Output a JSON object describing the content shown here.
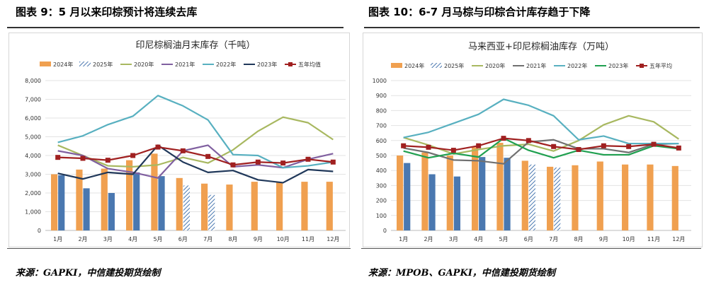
{
  "left": {
    "figure_title": "图表 9：5 月以来印棕预计将连续去库",
    "source": "来源：GAPKI，中信建投期货绘制",
    "chart_data": {
      "type": "bar+line",
      "title": "印尼棕榈油月末库存（千吨）",
      "categories": [
        "1月",
        "2月",
        "3月",
        "4月",
        "5月",
        "6月",
        "7月",
        "8月",
        "9月",
        "10月",
        "11月",
        "12月"
      ],
      "ylim": [
        0,
        8000
      ],
      "yticks": [
        0,
        1000,
        2000,
        3000,
        4000,
        5000,
        6000,
        7000,
        8000
      ],
      "ytick_labels": [
        "0",
        "1,000",
        "2,000",
        "3,000",
        "4,000",
        "5,000",
        "6,000",
        "7,000",
        "8,000"
      ],
      "grid": true,
      "legend_position": "top",
      "bar_series": [
        {
          "name": "2024年",
          "color": "#F0A050",
          "pattern": "solid",
          "values": [
            3000,
            3250,
            3300,
            3750,
            4100,
            2800,
            2500,
            2450,
            2600,
            2550,
            2600,
            2600
          ]
        },
        {
          "name": "2025年",
          "color": "#4A78B0",
          "pattern": "solid",
          "values": [
            2950,
            2250,
            2000,
            3100,
            2900,
            null,
            null,
            null,
            null,
            null,
            null,
            null
          ]
        },
        {
          "name": "2025年",
          "color": "#4A78B0",
          "pattern": "hatch",
          "values": [
            null,
            null,
            null,
            null,
            null,
            2400,
            1900,
            null,
            null,
            null,
            null,
            null
          ]
        }
      ],
      "line_series": [
        {
          "name": "2020年",
          "color": "#A8B860",
          "values": [
            4550,
            4000,
            3450,
            3400,
            3500,
            3900,
            3600,
            4300,
            5300,
            6050,
            5750,
            4850
          ]
        },
        {
          "name": "2021年",
          "color": "#8060A0",
          "values": [
            4250,
            4000,
            3300,
            3100,
            2800,
            4250,
            4550,
            3400,
            3500,
            3350,
            3800,
            4100
          ]
        },
        {
          "name": "2022年",
          "color": "#58B0C0",
          "values": [
            4700,
            5050,
            5650,
            6100,
            7200,
            6650,
            5900,
            4050,
            4000,
            3350,
            3450,
            3650
          ]
        },
        {
          "name": "2023年",
          "color": "#20385A",
          "values": [
            3050,
            2750,
            3100,
            3000,
            4550,
            3650,
            3100,
            3200,
            2700,
            2550,
            3250,
            3150
          ]
        },
        {
          "name": "五年均值",
          "color": "#A02020",
          "marker": "square",
          "values": [
            3900,
            3850,
            3750,
            4000,
            4450,
            4250,
            3950,
            3500,
            3650,
            3600,
            3800,
            3650
          ]
        }
      ],
      "legend": [
        "2024年",
        "2025年",
        "2020年",
        "2021年",
        "2022年",
        "2023年",
        "五年均值"
      ]
    }
  },
  "right": {
    "figure_title": "图表 10：6-7 月马棕与印棕合计库存趋于下降",
    "source": "来源：MPOB、GAPKI，中信建投期货绘制",
    "chart_data": {
      "type": "bar+line",
      "title": "马来西亚+印尼棕榈油库存（万吨）",
      "categories": [
        "1月",
        "2月",
        "3月",
        "4月",
        "5月",
        "6月",
        "7月",
        "8月",
        "9月",
        "10月",
        "11月",
        "12月"
      ],
      "ylim": [
        0,
        1000
      ],
      "yticks": [
        0,
        100,
        200,
        300,
        400,
        500,
        600,
        700,
        800,
        900,
        1000
      ],
      "ytick_labels": [
        "0",
        "100",
        "200",
        "300",
        "400",
        "500",
        "600",
        "700",
        "800",
        "900",
        "1000"
      ],
      "grid": true,
      "legend_position": "top",
      "bar_series": [
        {
          "name": "2024年",
          "color": "#F0A050",
          "pattern": "solid",
          "values": [
            500,
            520,
            500,
            555,
            585,
            465,
            425,
            435,
            460,
            440,
            440,
            430
          ]
        },
        {
          "name": "2025年",
          "color": "#4A78B0",
          "pattern": "solid",
          "values": [
            450,
            375,
            360,
            490,
            485,
            null,
            null,
            null,
            null,
            null,
            null,
            null
          ]
        },
        {
          "name": "2025年",
          "color": "#4A78B0",
          "pattern": "hatch",
          "values": [
            null,
            null,
            null,
            null,
            null,
            440,
            420,
            null,
            null,
            null,
            null,
            null
          ]
        }
      ],
      "line_series": [
        {
          "name": "2020年",
          "color": "#A8B860",
          "values": [
            620,
            570,
            510,
            540,
            565,
            575,
            530,
            600,
            705,
            765,
            725,
            610
          ]
        },
        {
          "name": "2021年",
          "color": "#707070",
          "values": [
            550,
            520,
            470,
            465,
            445,
            590,
            605,
            545,
            545,
            520,
            575,
            580
          ]
        },
        {
          "name": "2022年",
          "color": "#58B0C0",
          "values": [
            620,
            655,
            715,
            775,
            875,
            835,
            765,
            605,
            630,
            580,
            580,
            580
          ]
        },
        {
          "name": "2023年",
          "color": "#20A050",
          "values": [
            530,
            485,
            515,
            490,
            615,
            535,
            485,
            535,
            505,
            505,
            565,
            545
          ]
        },
        {
          "name": "五年平均",
          "color": "#A02020",
          "marker": "square",
          "values": [
            565,
            555,
            535,
            565,
            615,
            600,
            560,
            540,
            565,
            560,
            575,
            550
          ]
        }
      ],
      "legend": [
        "2024年",
        "2025年",
        "2020年",
        "2021年",
        "2022年",
        "2023年",
        "五年平均"
      ]
    }
  }
}
